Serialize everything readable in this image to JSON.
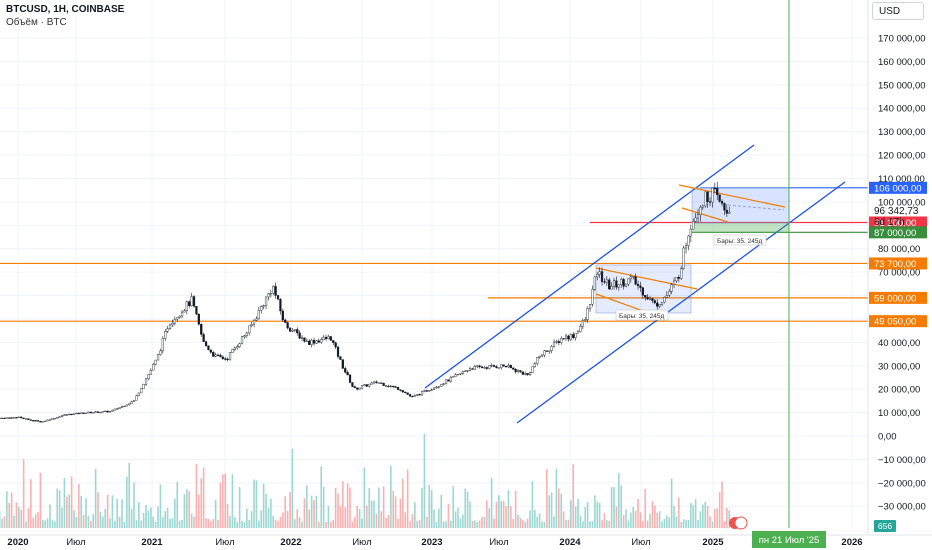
{
  "header": {
    "symbol": "BTCUSD, 1H, COINBASE",
    "volume_label": "Объём · BTC",
    "currency": "USD"
  },
  "chart_data": {
    "type": "candlestick",
    "y_ticks": [
      170000,
      160000,
      150000,
      140000,
      130000,
      120000,
      110000,
      100000,
      90000,
      80000,
      70000,
      60000,
      50000,
      40000,
      30000,
      20000,
      10000,
      0,
      -10000,
      -20000,
      -30000
    ],
    "y_tick_labels": [
      "170 000,00",
      "160 000,00",
      "150 000,00",
      "140 000,00",
      "130 000,00",
      "120 000,00",
      "110 000,00",
      "100 000,00",
      "90 000,00",
      "80 000,00",
      "70 000,00",
      "60 000,00",
      "50 000,00",
      "40 000,00",
      "30 000,00",
      "20 000,00",
      "10 000,00",
      "0,00",
      "−10 000,00",
      "−20 000,00",
      "−30 000,00"
    ],
    "x_ticks": [
      "2020",
      "Июл",
      "2021",
      "Июл",
      "2022",
      "Июл",
      "2023",
      "Июл",
      "2024",
      "Июл",
      "2025",
      "2026"
    ],
    "price_series": [
      [
        "2019-11",
        7500
      ],
      [
        "2020-01",
        8000
      ],
      [
        "2020-03",
        6000
      ],
      [
        "2020-05",
        9000
      ],
      [
        "2020-07",
        10000
      ],
      [
        "2020-09",
        10500
      ],
      [
        "2020-11",
        15000
      ],
      [
        "2021-01",
        33000
      ],
      [
        "2021-02",
        48000
      ],
      [
        "2021-04",
        58000
      ],
      [
        "2021-05",
        40000
      ],
      [
        "2021-06",
        34000
      ],
      [
        "2021-07",
        33000
      ],
      [
        "2021-09",
        46000
      ],
      [
        "2021-11",
        64000
      ],
      [
        "2021-12",
        48000
      ],
      [
        "2022-02",
        40000
      ],
      [
        "2022-04",
        42000
      ],
      [
        "2022-05",
        30000
      ],
      [
        "2022-06",
        20000
      ],
      [
        "2022-08",
        23000
      ],
      [
        "2022-10",
        20000
      ],
      [
        "2022-11",
        16500
      ],
      [
        "2023-01",
        21000
      ],
      [
        "2023-03",
        26000
      ],
      [
        "2023-04",
        29000
      ],
      [
        "2023-07",
        30000
      ],
      [
        "2023-09",
        26000
      ],
      [
        "2023-10",
        34000
      ],
      [
        "2023-12",
        42000
      ],
      [
        "2024-01",
        43000
      ],
      [
        "2024-02",
        50000
      ],
      [
        "2024-03",
        70000
      ],
      [
        "2024-04",
        64000
      ],
      [
        "2024-06",
        67000
      ],
      [
        "2024-08",
        56000
      ],
      [
        "2024-09",
        60000
      ],
      [
        "2024-10",
        68000
      ],
      [
        "2024-11",
        90000
      ],
      [
        "2024-12",
        100000
      ],
      [
        "2025-01",
        104000
      ],
      [
        "2025-02",
        96342.73
      ]
    ],
    "price_levels": [
      {
        "value": 106000,
        "label": "106 000,00",
        "color": "#2962ff"
      },
      {
        "value": 91200,
        "label": "91 200,00",
        "color": "#f23645"
      },
      {
        "value": 87000,
        "label": "87 000,00",
        "color": "#388e3c"
      },
      {
        "value": 73700,
        "label": "73 700,00",
        "color": "#f57c00"
      },
      {
        "value": 59000,
        "label": "59 000,00",
        "color": "#f57c00"
      },
      {
        "value": 49050,
        "label": "49 050,00",
        "color": "#f57c00"
      }
    ],
    "current_price": {
      "value": 96342.73,
      "label": "96 342,73",
      "countdown": "6d 17h"
    },
    "annotations": [
      "Бары: 35, 245д",
      "Бары: 35, 245д"
    ],
    "vertical_marker": {
      "date": "2025-07-21",
      "label": "пн 21 Июл '25",
      "color": "#4caf50"
    },
    "volume_badge": "656",
    "colors": {
      "up": "#26a69a",
      "down": "#ef5350",
      "channel": "#1e53e5",
      "orange": "#f57c00"
    }
  }
}
